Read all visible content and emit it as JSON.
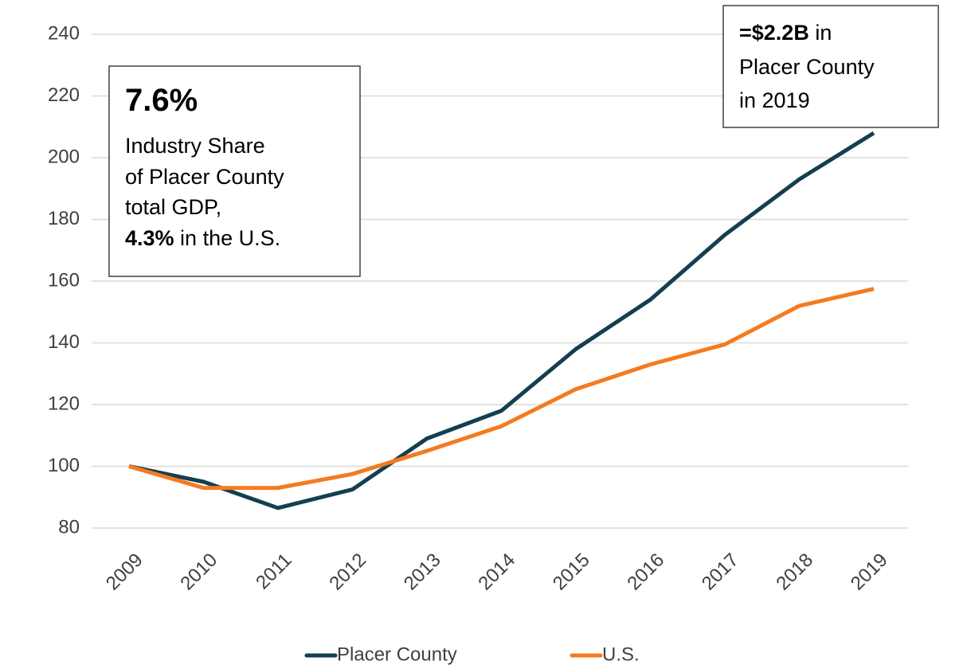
{
  "chart_data": {
    "type": "line",
    "categories": [
      "2009",
      "2010",
      "2011",
      "2012",
      "2013",
      "2014",
      "2015",
      "2016",
      "2017",
      "2018",
      "2019"
    ],
    "series": [
      {
        "name": "Placer County",
        "color": "#143f4f",
        "values": [
          100,
          95,
          86.5,
          92.5,
          109,
          118,
          138,
          154,
          175,
          193,
          208
        ]
      },
      {
        "name": "U.S.",
        "color": "#f47b20",
        "values": [
          100,
          93,
          93,
          97.5,
          105,
          113,
          125,
          133,
          139.5,
          152,
          157.5
        ]
      }
    ],
    "ylim": [
      80,
      240
    ],
    "yticks": [
      80,
      100,
      120,
      140,
      160,
      180,
      200,
      220,
      240
    ],
    "grid": true,
    "legend": "bottom",
    "annotations": [
      {
        "lines": [
          [
            {
              "text": "7.6%",
              "bold": true
            }
          ],
          [
            {
              "text": "Industry Share"
            }
          ],
          [
            {
              "text": "of Placer County"
            }
          ],
          [
            {
              "text": "total GDP,"
            }
          ],
          [
            {
              "text": "4.3%",
              "bold": true
            },
            {
              "text": " in the U.S."
            }
          ]
        ]
      },
      {
        "lines": [
          [
            {
              "text": "=$2.2B",
              "bold": true
            },
            {
              "text": " in"
            }
          ],
          [
            {
              "text": "Placer County"
            }
          ],
          [
            {
              "text": "in 2019"
            }
          ]
        ]
      }
    ]
  }
}
